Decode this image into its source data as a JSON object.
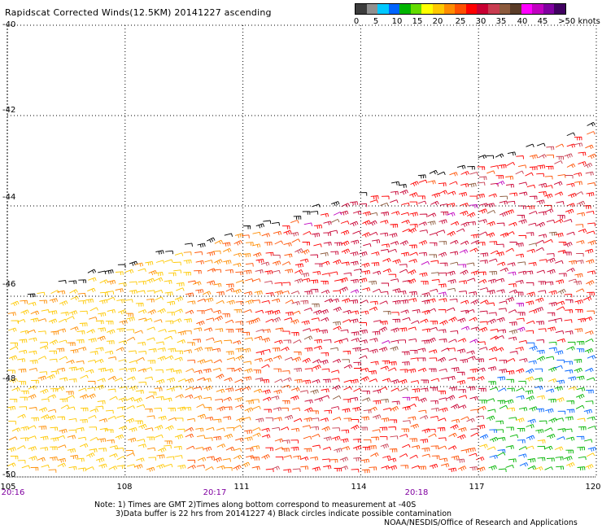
{
  "title": "Rapidscat Corrected Winds(12.5KM) 20141227 ascending",
  "colorbar": {
    "colors": [
      "#3c3c3c",
      "#909090",
      "#00c8ff",
      "#0064ff",
      "#00b400",
      "#64dc00",
      "#ffff00",
      "#ffc800",
      "#ff8c00",
      "#ff5000",
      "#ff0000",
      "#c80032",
      "#c83c50",
      "#8c5a3c",
      "#5a3c28",
      "#ff00ff",
      "#c000c0",
      "#8000a0",
      "#400060"
    ],
    "labels": [
      "0",
      "5",
      "10",
      "15",
      "20",
      "25",
      "30",
      "35",
      "40",
      "45",
      ">50 knots"
    ]
  },
  "axes": {
    "lat_labels": [
      "-40",
      "-42",
      "-44",
      "-46",
      "-48",
      "-50"
    ],
    "lat_values": [
      -40,
      -42,
      -44,
      -46,
      -48,
      -50
    ],
    "lon_labels": [
      "105",
      "108",
      "111",
      "114",
      "117",
      "120"
    ],
    "lon_values": [
      105,
      108,
      111,
      114,
      117,
      120
    ],
    "time_labels": [
      "20:16",
      "20:17",
      "20:18"
    ],
    "time_lons": [
      105.2,
      110.2,
      115.2
    ]
  },
  "notes": {
    "line1": "Note: 1) Times are GMT 2)Times along bottom correspond to measurement at -40S",
    "line2": "3)Data buffer is 22 hrs from 20141227 4) Black circles indicate possible contamination",
    "line3": "NOAA/NESDIS/Office of Research and Applications"
  },
  "swath": {
    "edge_lat_at_105": -46.0,
    "edge_lat_at_120": -42.2
  }
}
